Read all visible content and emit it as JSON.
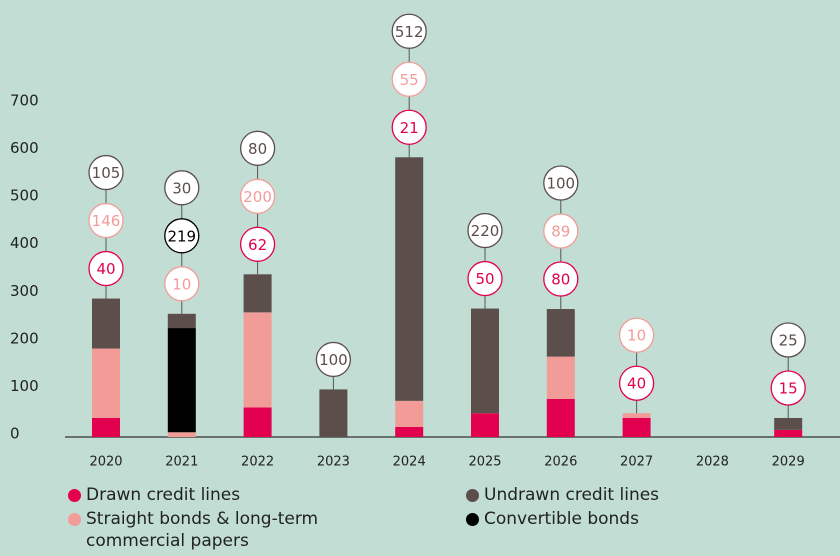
{
  "chart_data": {
    "type": "bar",
    "stacked": true,
    "categories": [
      "2020",
      "2021",
      "2022",
      "2023",
      "2024",
      "2025",
      "2026",
      "2027",
      "2028",
      "2029"
    ],
    "series": [
      {
        "name": "Drawn credit lines",
        "color": "#e2004f",
        "values": [
          40,
          null,
          62,
          null,
          21,
          50,
          80,
          40,
          null,
          15
        ]
      },
      {
        "name": "Straight bonds & long-term commercial papers",
        "color": "#f29c98",
        "values": [
          146,
          10,
          200,
          null,
          55,
          null,
          89,
          10,
          null,
          null
        ]
      },
      {
        "name": "Convertible bonds",
        "color": "#000000",
        "values": [
          null,
          219,
          null,
          null,
          null,
          null,
          null,
          null,
          null,
          null
        ]
      },
      {
        "name": "Undrawn credit lines",
        "color": "#5b4e4b",
        "values": [
          105,
          30,
          80,
          100,
          512,
          220,
          100,
          null,
          null,
          25
        ]
      }
    ],
    "ylim": [
      0,
      700
    ],
    "yticks": [
      0,
      100,
      200,
      300,
      400,
      500,
      600,
      700
    ]
  }
}
